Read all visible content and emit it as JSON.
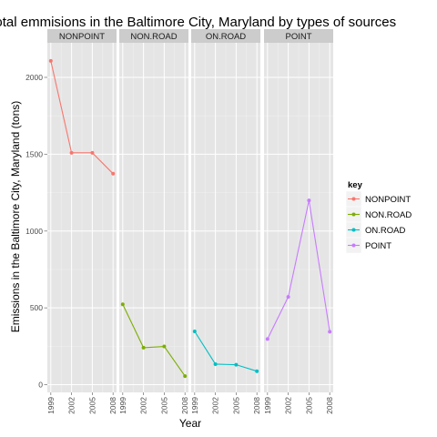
{
  "chart_data": {
    "type": "line",
    "title": "Total emmisions in the Baltimore City, Maryland by types of sources",
    "xlabel": "Year",
    "ylabel": "Emissions in the Baltimore City, Maryland (tons)",
    "x": [
      1999,
      2002,
      2005,
      2008
    ],
    "x_tick_labels": [
      "1999",
      "2002",
      "2005",
      "2008"
    ],
    "y_ticks": [
      0,
      500,
      1000,
      1500,
      2000
    ],
    "y_tick_labels": [
      "0",
      "500",
      "1000",
      "1500",
      "2000"
    ],
    "ylim": [
      -50,
      2225
    ],
    "xlim": [
      1998.5,
      2008.5
    ],
    "grid": true,
    "facet_by": "key",
    "legend": {
      "title": "key",
      "placement": "right"
    },
    "series": [
      {
        "name": "NONPOINT",
        "color": "#F8766D",
        "values": [
          2107,
          1509,
          1509,
          1373
        ]
      },
      {
        "name": "NON.ROAD",
        "color": "#7CAE00",
        "values": [
          523,
          241,
          249,
          56
        ]
      },
      {
        "name": "ON.ROAD",
        "color": "#00BFC4",
        "values": [
          347,
          134,
          130,
          88
        ]
      },
      {
        "name": "POINT",
        "color": "#C77CFF",
        "values": [
          297,
          571,
          1199,
          345
        ]
      }
    ]
  }
}
